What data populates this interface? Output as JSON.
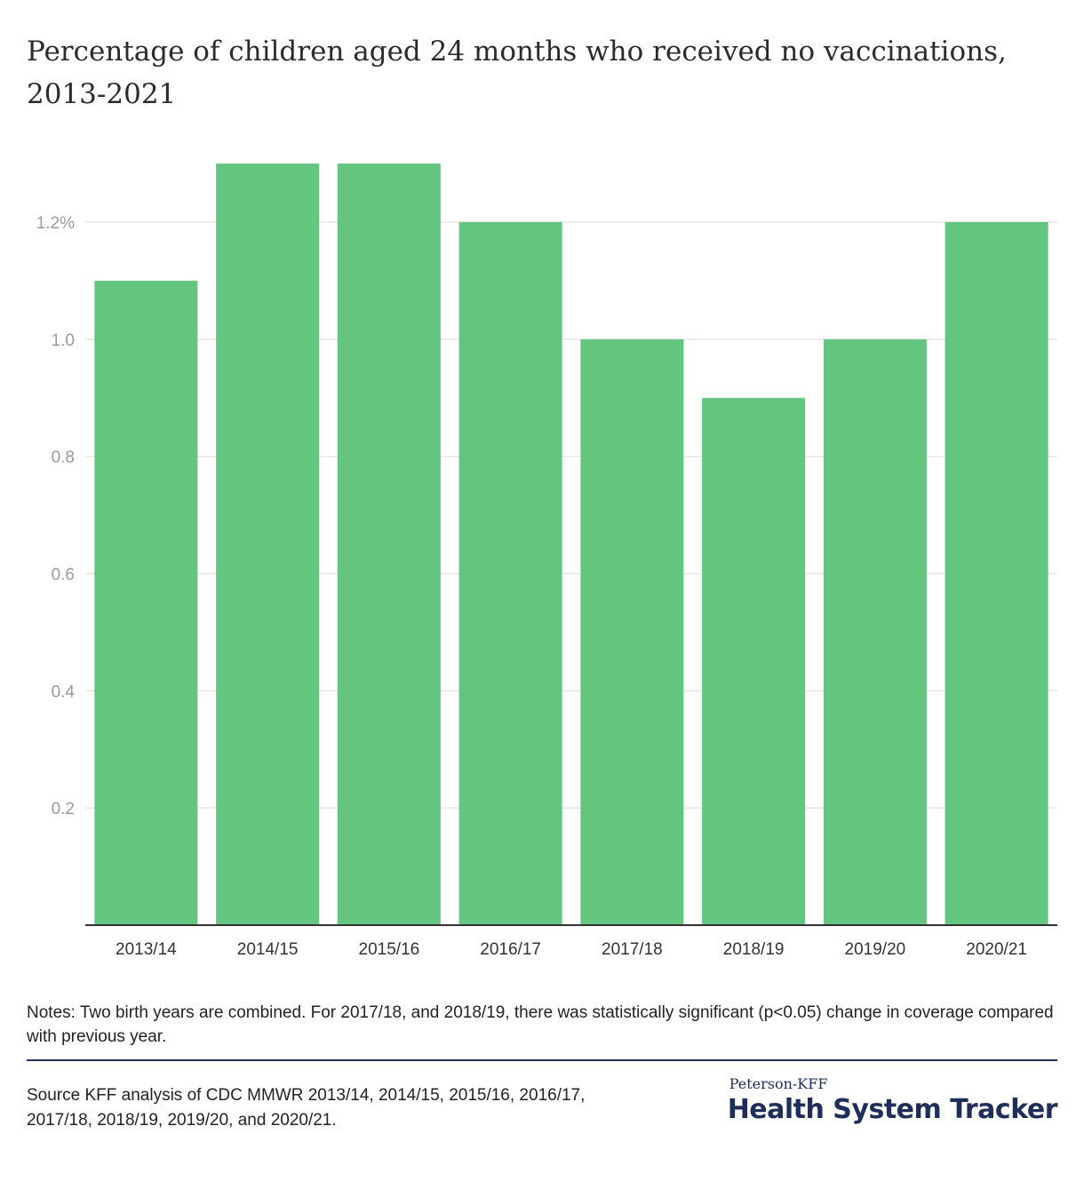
{
  "header": {
    "title": "Percentage of children aged 24 months who received no vaccinations, 2013-2021"
  },
  "chart_data": {
    "type": "bar",
    "title": "Percentage of children aged 24 months who received no vaccinations, 2013-2021",
    "xlabel": "",
    "ylabel": "",
    "categories": [
      "2013/14",
      "2014/15",
      "2015/16",
      "2016/17",
      "2017/18",
      "2018/19",
      "2019/20",
      "2020/21"
    ],
    "values": [
      1.1,
      1.3,
      1.3,
      1.2,
      1.0,
      0.9,
      1.0,
      1.2
    ],
    "ylim": [
      0,
      1.3
    ],
    "yticks": [
      {
        "value": 0.2,
        "label": "0.2"
      },
      {
        "value": 0.4,
        "label": "0.4"
      },
      {
        "value": 0.6,
        "label": "0.6"
      },
      {
        "value": 0.8,
        "label": "0.8"
      },
      {
        "value": 1.0,
        "label": "1.0"
      },
      {
        "value": 1.2,
        "label": "1.2%"
      }
    ],
    "grid": true,
    "bar_color": "#64c57e",
    "grid_color": "#e6e6e6",
    "axis_color": "#333333"
  },
  "footer": {
    "notes": "Notes: Two birth years are combined. For 2017/18, and 2018/19, there was statistically significant (p<0.05) change in coverage compared with previous year.",
    "source": "Source KFF analysis of CDC MMWR 2013/14, 2014/15, 2015/16, 2016/17, 2017/18, 2018/19, 2019/20, and 2020/21.",
    "brand_top": "Peterson-KFF",
    "brand_main": "Health System Tracker"
  }
}
